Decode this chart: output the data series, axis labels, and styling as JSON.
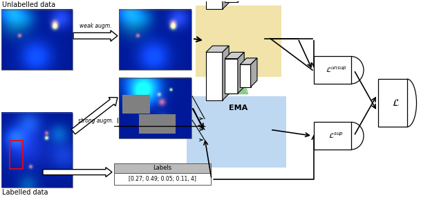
{
  "fig_width": 6.22,
  "fig_height": 2.86,
  "dpi": 100,
  "bg_color": "#ffffff",
  "unlabelled_text": "Unlabelled data",
  "labelled_text": "Labelled data",
  "weak_augm_text": "weak augm.",
  "strong_augm_text": "strong augm.",
  "ema_text": "EMA",
  "labels_header": "Labels",
  "labels_values": "[0.27; 0.49; 0.05; 0.11, 4]",
  "L_unsup": "$\\mathcal{L}^{unsup}$",
  "L_sup": "$\\mathcal{L}^{sup}$",
  "L_total": "$\\mathcal{L}$",
  "yellow_bg": "#f0e0a0",
  "blue_bg": "#b8d4f0",
  "ema_color_top": "#88cc88",
  "ema_color_bottom": "#aaddaa"
}
